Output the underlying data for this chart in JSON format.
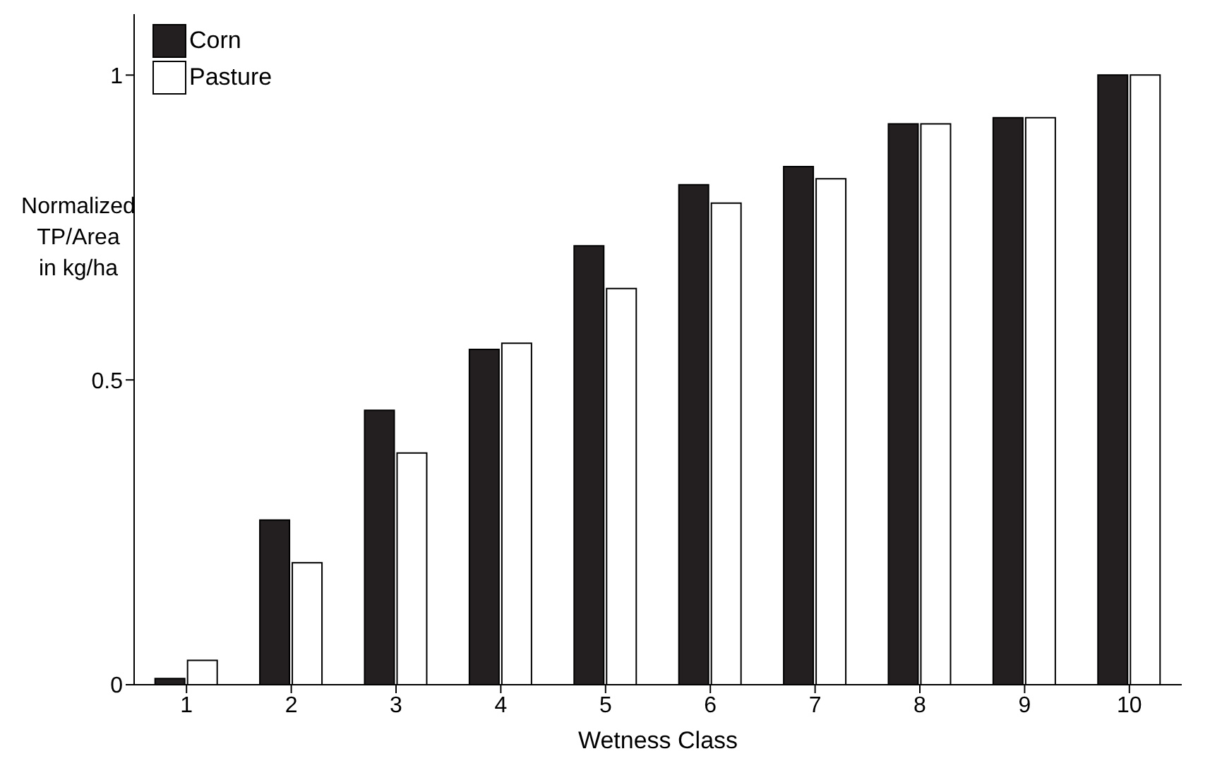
{
  "chart_data": {
    "type": "bar",
    "xlabel": "Wetness Class",
    "ylabel": "Normalized\nTP/Area\nin kg/ha",
    "categories": [
      "1",
      "2",
      "3",
      "4",
      "5",
      "6",
      "7",
      "8",
      "9",
      "10"
    ],
    "series": [
      {
        "name": "Corn",
        "color": "#231f20",
        "values": [
          0.01,
          0.27,
          0.45,
          0.55,
          0.72,
          0.82,
          0.85,
          0.92,
          0.93,
          1.0
        ]
      },
      {
        "name": "Pasture",
        "color": "#ffffff",
        "values": [
          0.04,
          0.2,
          0.38,
          0.56,
          0.65,
          0.79,
          0.83,
          0.92,
          0.93,
          1.0
        ]
      }
    ],
    "ylim": [
      0,
      1.1
    ],
    "yticks": [
      0,
      0.5,
      1
    ],
    "grid": false,
    "legend": "top left"
  }
}
